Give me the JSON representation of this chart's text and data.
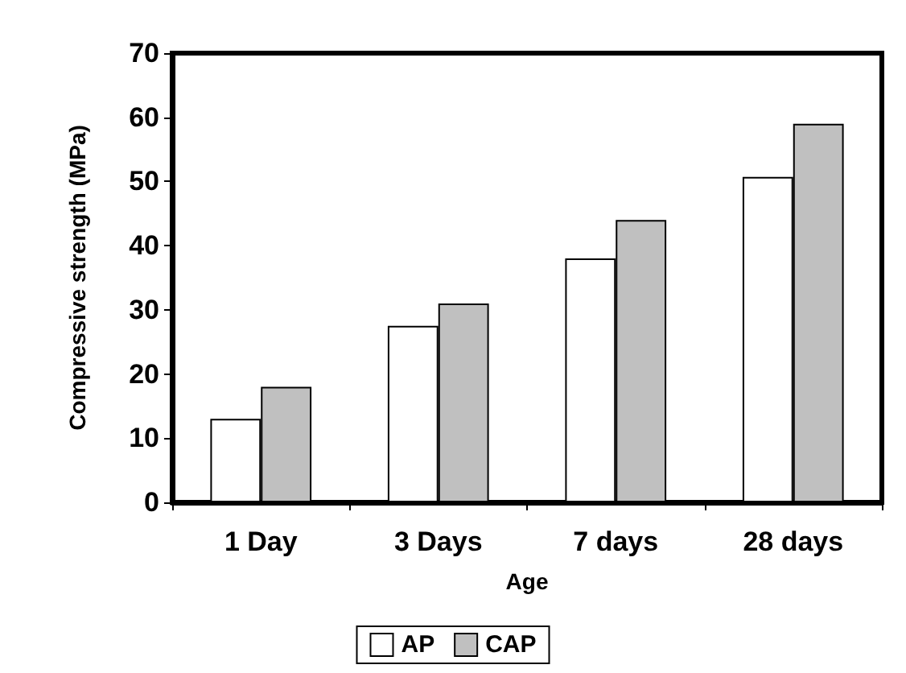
{
  "chart_data": {
    "type": "bar",
    "xlabel": "Age",
    "ylabel": "Compressive strength (MPa)",
    "categories": [
      "1 Day",
      "3 Days",
      "7 days",
      "28 days"
    ],
    "series": [
      {
        "name": "AP",
        "color": "#ffffff",
        "values": [
          13,
          27.5,
          38,
          50.7
        ]
      },
      {
        "name": "CAP",
        "color": "#c0c0c0",
        "values": [
          18,
          31,
          44,
          59
        ]
      }
    ],
    "ylim": [
      0,
      70
    ],
    "yticks": [
      0,
      10,
      20,
      30,
      40,
      50,
      60,
      70
    ],
    "grid": false,
    "legend": "bottom"
  }
}
